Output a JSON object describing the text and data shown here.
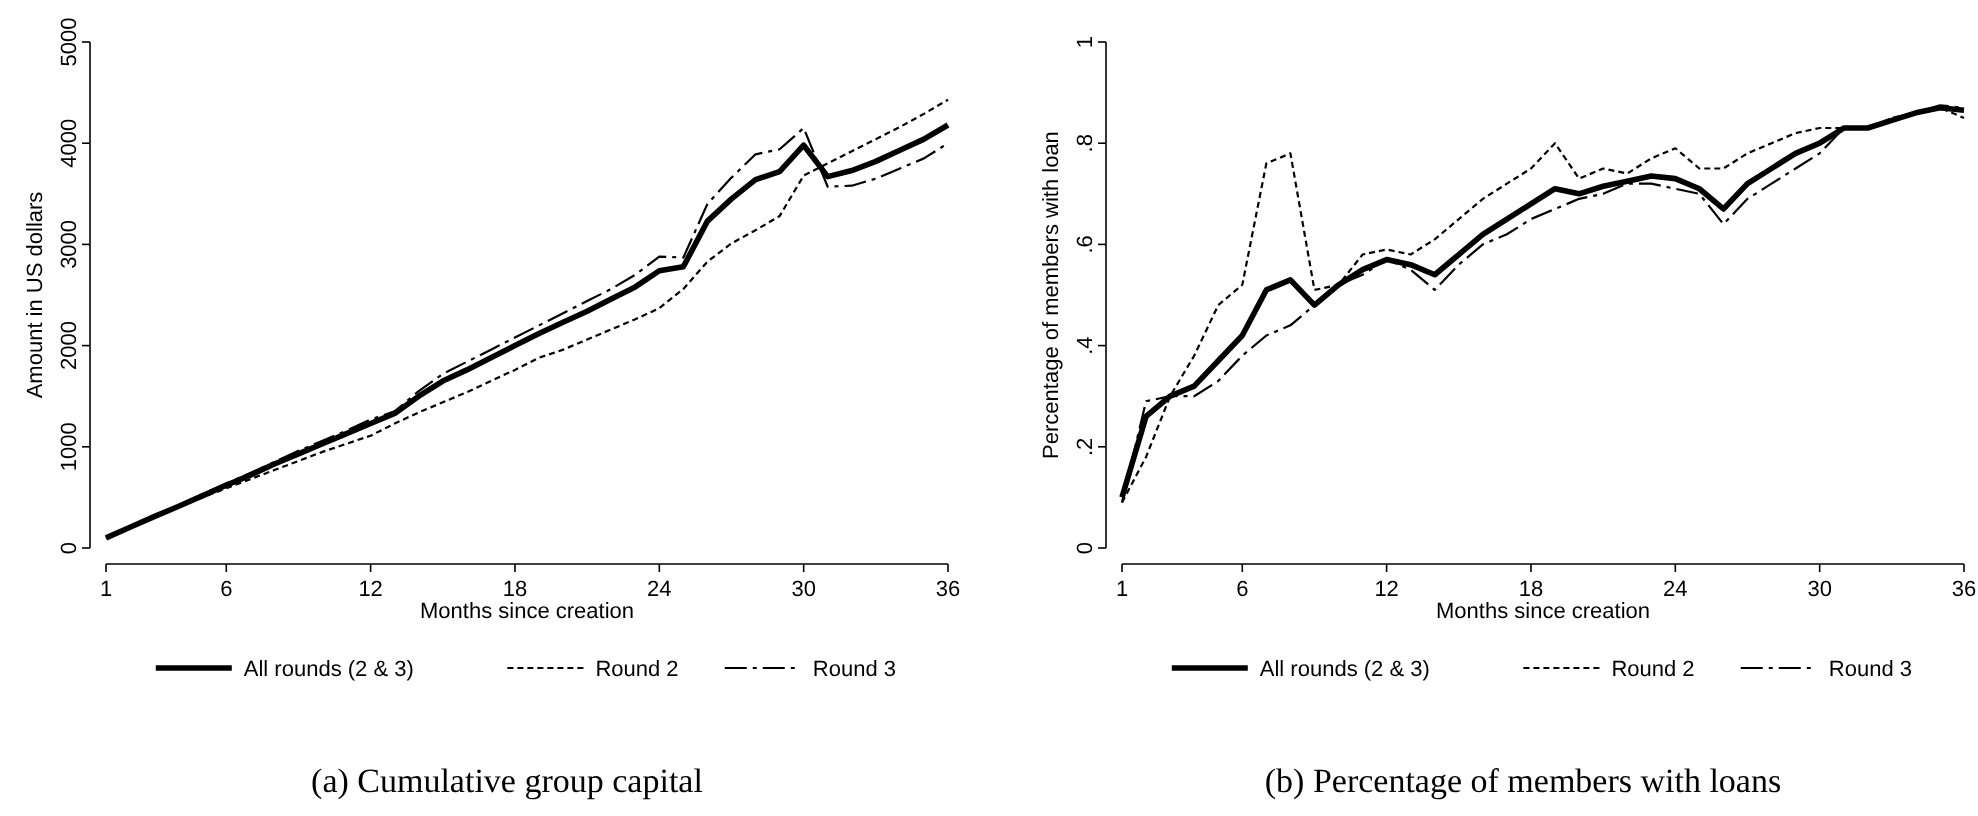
{
  "chart_data": [
    {
      "type": "line",
      "title": "(a) Cumulative group capital",
      "xlabel": "Months since creation",
      "ylabel": "Amount in US dollars",
      "x": [
        1,
        2,
        3,
        4,
        5,
        6,
        7,
        8,
        9,
        10,
        11,
        12,
        13,
        14,
        15,
        16,
        17,
        18,
        19,
        20,
        21,
        22,
        23,
        24,
        25,
        26,
        27,
        28,
        29,
        30,
        31,
        32,
        33,
        34,
        35,
        36
      ],
      "xlim": [
        1,
        36
      ],
      "xticks": [
        1,
        6,
        12,
        18,
        24,
        30,
        36
      ],
      "ylim": [
        0,
        5000
      ],
      "yticks": [
        0,
        1000,
        2000,
        3000,
        4000,
        5000
      ],
      "grid": false,
      "legend": "bottom",
      "series": [
        {
          "name": "All rounds (2 & 3)",
          "color": "#000000",
          "line_style": "solid",
          "values": [
            100,
            205,
            310,
            410,
            515,
            620,
            720,
            830,
            930,
            1030,
            1130,
            1230,
            1330,
            1500,
            1650,
            1760,
            1880,
            2000,
            2120,
            2230,
            2340,
            2460,
            2580,
            2740,
            2780,
            3230,
            3450,
            3640,
            3720,
            3980,
            3670,
            3730,
            3820,
            3930,
            4040,
            4180
          ]
        },
        {
          "name": "Round 2",
          "color": "#000000",
          "line_style": "dotted",
          "values": [
            100,
            200,
            300,
            400,
            500,
            590,
            680,
            770,
            860,
            950,
            1030,
            1110,
            1230,
            1340,
            1440,
            1540,
            1650,
            1760,
            1880,
            1960,
            2060,
            2160,
            2260,
            2370,
            2560,
            2830,
            3010,
            3140,
            3280,
            3680,
            3800,
            3920,
            4040,
            4160,
            4290,
            4430
          ]
        },
        {
          "name": "Round 3",
          "color": "#000000",
          "line_style": "dashed",
          "values": [
            100,
            210,
            320,
            420,
            530,
            640,
            740,
            850,
            960,
            1060,
            1160,
            1270,
            1350,
            1550,
            1720,
            1840,
            1960,
            2080,
            2200,
            2320,
            2440,
            2560,
            2700,
            2880,
            2870,
            3400,
            3660,
            3890,
            3940,
            4150,
            3570,
            3580,
            3650,
            3750,
            3850,
            4000
          ]
        }
      ]
    },
    {
      "type": "line",
      "title": "(b) Percentage of members with loans",
      "xlabel": "Months since creation",
      "ylabel": "Percentage of members with loan",
      "x": [
        1,
        2,
        3,
        4,
        5,
        6,
        7,
        8,
        9,
        10,
        11,
        12,
        13,
        14,
        15,
        16,
        17,
        18,
        19,
        20,
        21,
        22,
        23,
        24,
        25,
        26,
        27,
        28,
        29,
        30,
        31,
        32,
        33,
        34,
        35,
        36
      ],
      "xlim": [
        1,
        36
      ],
      "xticks": [
        1,
        6,
        12,
        18,
        24,
        30,
        36
      ],
      "ylim": [
        0,
        1
      ],
      "yticks": [
        0,
        {
          "value": 0.2,
          "label": ".2"
        },
        {
          "value": 0.4,
          "label": ".4"
        },
        {
          "value": 0.6,
          "label": ".6"
        },
        {
          "value": 0.8,
          "label": ".8"
        },
        1
      ],
      "grid": false,
      "legend": "bottom",
      "series": [
        {
          "name": "All rounds (2 & 3)",
          "color": "#000000",
          "line_style": "solid",
          "values": [
            0.1,
            0.26,
            0.3,
            0.32,
            0.37,
            0.42,
            0.51,
            0.53,
            0.48,
            0.52,
            0.55,
            0.57,
            0.56,
            0.54,
            0.58,
            0.62,
            0.65,
            0.68,
            0.71,
            0.7,
            0.715,
            0.725,
            0.735,
            0.73,
            0.71,
            0.67,
            0.72,
            0.75,
            0.78,
            0.8,
            0.83,
            0.83,
            0.845,
            0.86,
            0.87,
            0.865
          ]
        },
        {
          "name": "Round 2",
          "color": "#000000",
          "line_style": "dotted",
          "values": [
            0.09,
            0.18,
            0.3,
            0.38,
            0.48,
            0.52,
            0.76,
            0.78,
            0.51,
            0.52,
            0.58,
            0.59,
            0.58,
            0.61,
            0.65,
            0.69,
            0.72,
            0.75,
            0.8,
            0.73,
            0.75,
            0.74,
            0.77,
            0.79,
            0.75,
            0.75,
            0.78,
            0.8,
            0.82,
            0.83,
            0.83,
            0.83,
            0.85,
            0.86,
            0.87,
            0.85
          ]
        },
        {
          "name": "Round 3",
          "color": "#000000",
          "line_style": "dashed",
          "values": [
            0.09,
            0.29,
            0.3,
            0.3,
            0.33,
            0.38,
            0.42,
            0.44,
            0.48,
            0.52,
            0.54,
            0.57,
            0.55,
            0.51,
            0.56,
            0.6,
            0.62,
            0.65,
            0.67,
            0.69,
            0.7,
            0.72,
            0.72,
            0.71,
            0.7,
            0.64,
            0.69,
            0.72,
            0.75,
            0.78,
            0.83,
            0.83,
            0.845,
            0.86,
            0.875,
            0.87
          ]
        }
      ]
    }
  ]
}
